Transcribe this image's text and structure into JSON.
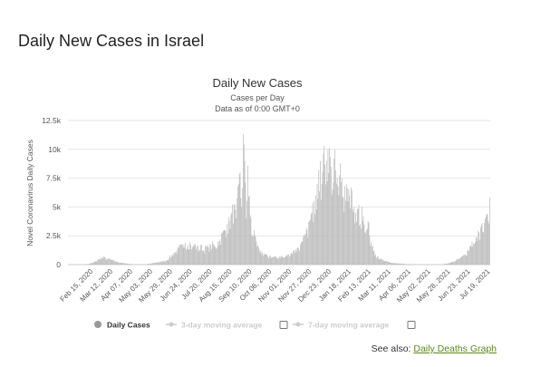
{
  "page": {
    "title": "Daily New Cases in Israel",
    "see_also_prefix": "See also:",
    "see_also_link": "Daily Deaths Graph"
  },
  "legend": {
    "items": [
      {
        "label": "Daily Cases",
        "active": true,
        "icon": "circle-marker-icon"
      },
      {
        "label": "3-day moving average",
        "active": false,
        "icon": "line-marker-icon"
      },
      {
        "label": "",
        "active": false,
        "icon": "checkbox-icon"
      },
      {
        "label": "7-day moving average",
        "active": false,
        "icon": "line-marker-icon"
      },
      {
        "label": "",
        "active": false,
        "icon": "checkbox-icon"
      }
    ]
  },
  "colors": {
    "bars": "#bbbbbb",
    "bars_stroke": "#9a9a9a",
    "grid": "#e6e6e6",
    "link": "#5a8a1a",
    "legend_active": "#999999",
    "legend_inactive": "#cccccc"
  },
  "chart_data": {
    "type": "bar",
    "title": "Daily New Cases",
    "subtitle": "Cases per Day",
    "subtitle2": "Data as of 0:00 GMT+0",
    "ylabel": "Novel Coronavirus Daily Cases",
    "xlabel": "",
    "x_start": "2020-02-15",
    "x_end": "2021-08-16",
    "ylim": [
      0,
      12500
    ],
    "y_ticks": [
      0,
      2500,
      5000,
      7500,
      10000,
      12500
    ],
    "y_tick_labels": [
      "0",
      "2.5k",
      "5k",
      "7.5k",
      "10k",
      "12.5k"
    ],
    "x_tick_labels": [
      "Feb 15, 2020",
      "Mar 12, 2020",
      "Apr 07, 2020",
      "May 03, 2020",
      "May 29, 2020",
      "Jun 24, 2020",
      "Jul 20, 2020",
      "Aug 15, 2020",
      "Sep 10, 2020",
      "Oct 06, 2020",
      "Nov 01, 2020",
      "Nov 27, 2020",
      "Dec 23, 2020",
      "Jan 18, 2021",
      "Feb 13, 2021",
      "Mar 11, 2021",
      "Apr 06, 2021",
      "May 02, 2021",
      "May 28, 2021",
      "Jun 23, 2021",
      "Jul 19, 2021"
    ],
    "grid": true,
    "legend_position": "bottom",
    "series": [
      {
        "name": "Daily Cases",
        "points": [
          [
            "2020-03-05",
            5
          ],
          [
            "2020-03-12",
            50
          ],
          [
            "2020-03-17",
            150
          ],
          [
            "2020-03-20",
            250
          ],
          [
            "2020-03-24",
            400
          ],
          [
            "2020-03-27",
            530
          ],
          [
            "2020-03-30",
            600
          ],
          [
            "2020-04-02",
            650
          ],
          [
            "2020-04-05",
            480
          ],
          [
            "2020-04-08",
            520
          ],
          [
            "2020-04-12",
            400
          ],
          [
            "2020-04-16",
            300
          ],
          [
            "2020-04-20",
            220
          ],
          [
            "2020-04-25",
            150
          ],
          [
            "2020-05-01",
            90
          ],
          [
            "2020-05-08",
            40
          ],
          [
            "2020-05-15",
            20
          ],
          [
            "2020-05-22",
            20
          ],
          [
            "2020-05-29",
            60
          ],
          [
            "2020-06-03",
            120
          ],
          [
            "2020-06-08",
            180
          ],
          [
            "2020-06-13",
            250
          ],
          [
            "2020-06-18",
            300
          ],
          [
            "2020-06-22",
            400
          ],
          [
            "2020-06-25",
            600
          ],
          [
            "2020-06-28",
            800
          ],
          [
            "2020-07-01",
            1000
          ],
          [
            "2020-07-04",
            1200
          ],
          [
            "2020-07-07",
            1400
          ],
          [
            "2020-07-10",
            1700
          ],
          [
            "2020-07-13",
            1500
          ],
          [
            "2020-07-16",
            1900
          ],
          [
            "2020-07-19",
            1700
          ],
          [
            "2020-07-22",
            1950
          ],
          [
            "2020-07-25",
            1500
          ],
          [
            "2020-07-28",
            1800
          ],
          [
            "2020-07-31",
            1600
          ],
          [
            "2020-08-03",
            1300
          ],
          [
            "2020-08-06",
            1700
          ],
          [
            "2020-08-09",
            1200
          ],
          [
            "2020-08-12",
            1600
          ],
          [
            "2020-08-15",
            1500
          ],
          [
            "2020-08-18",
            1700
          ],
          [
            "2020-08-21",
            1800
          ],
          [
            "2020-08-24",
            1500
          ],
          [
            "2020-08-27",
            2000
          ],
          [
            "2020-08-30",
            2200
          ],
          [
            "2020-09-02",
            2800
          ],
          [
            "2020-09-05",
            3000
          ],
          [
            "2020-09-08",
            3500
          ],
          [
            "2020-09-11",
            3800
          ],
          [
            "2020-09-14",
            4500
          ],
          [
            "2020-09-17",
            5200
          ],
          [
            "2020-09-20",
            4000
          ],
          [
            "2020-09-23",
            7000
          ],
          [
            "2020-09-25",
            8000
          ],
          [
            "2020-09-27",
            5000
          ],
          [
            "2020-09-29",
            11300
          ],
          [
            "2020-10-01",
            9000
          ],
          [
            "2020-10-03",
            4000
          ],
          [
            "2020-10-05",
            8600
          ],
          [
            "2020-10-07",
            6000
          ],
          [
            "2020-10-10",
            2500
          ],
          [
            "2020-10-13",
            3000
          ],
          [
            "2020-10-16",
            2000
          ],
          [
            "2020-10-19",
            1500
          ],
          [
            "2020-10-22",
            1200
          ],
          [
            "2020-10-25",
            800
          ],
          [
            "2020-10-28",
            900
          ],
          [
            "2020-10-31",
            700
          ],
          [
            "2020-11-03",
            800
          ],
          [
            "2020-11-06",
            650
          ],
          [
            "2020-11-09",
            700
          ],
          [
            "2020-11-12",
            600
          ],
          [
            "2020-11-15",
            700
          ],
          [
            "2020-11-18",
            750
          ],
          [
            "2020-11-21",
            600
          ],
          [
            "2020-11-24",
            800
          ],
          [
            "2020-11-27",
            900
          ],
          [
            "2020-11-30",
            1000
          ],
          [
            "2020-12-03",
            1200
          ],
          [
            "2020-12-06",
            1300
          ],
          [
            "2020-12-09",
            1500
          ],
          [
            "2020-12-12",
            1700
          ],
          [
            "2020-12-15",
            2000
          ],
          [
            "2020-12-18",
            2500
          ],
          [
            "2020-12-21",
            3000
          ],
          [
            "2020-12-24",
            3800
          ],
          [
            "2020-12-27",
            4500
          ],
          [
            "2020-12-30",
            5500
          ],
          [
            "2021-01-01",
            6000
          ],
          [
            "2021-01-03",
            7000
          ],
          [
            "2021-01-05",
            8200
          ],
          [
            "2021-01-07",
            9000
          ],
          [
            "2021-01-09",
            7000
          ],
          [
            "2021-01-11",
            9600
          ],
          [
            "2021-01-13",
            8700
          ],
          [
            "2021-01-15",
            9000
          ],
          [
            "2021-01-17",
            10000
          ],
          [
            "2021-01-19",
            10100
          ],
          [
            "2021-01-21",
            8500
          ],
          [
            "2021-01-23",
            6500
          ],
          [
            "2021-01-25",
            9200
          ],
          [
            "2021-01-27",
            8200
          ],
          [
            "2021-01-29",
            7500
          ],
          [
            "2021-01-31",
            6000
          ],
          [
            "2021-02-02",
            8800
          ],
          [
            "2021-02-04",
            7500
          ],
          [
            "2021-02-06",
            5800
          ],
          [
            "2021-02-08",
            6800
          ],
          [
            "2021-02-10",
            7000
          ],
          [
            "2021-02-12",
            5500
          ],
          [
            "2021-02-14",
            6000
          ],
          [
            "2021-02-16",
            6700
          ],
          [
            "2021-02-18",
            4800
          ],
          [
            "2021-02-20",
            5000
          ],
          [
            "2021-02-22",
            4500
          ],
          [
            "2021-02-24",
            4800
          ],
          [
            "2021-02-26",
            5200
          ],
          [
            "2021-02-28",
            3500
          ],
          [
            "2021-03-02",
            5000
          ],
          [
            "2021-03-04",
            4200
          ],
          [
            "2021-03-06",
            2800
          ],
          [
            "2021-03-08",
            3000
          ],
          [
            "2021-03-10",
            3800
          ],
          [
            "2021-03-12",
            2500
          ],
          [
            "2021-03-14",
            2000
          ],
          [
            "2021-03-16",
            1600
          ],
          [
            "2021-03-18",
            1200
          ],
          [
            "2021-03-20",
            900
          ],
          [
            "2021-03-23",
            700
          ],
          [
            "2021-03-26",
            500
          ],
          [
            "2021-03-29",
            400
          ],
          [
            "2021-04-01",
            300
          ],
          [
            "2021-04-05",
            250
          ],
          [
            "2021-04-09",
            180
          ],
          [
            "2021-04-14",
            120
          ],
          [
            "2021-04-20",
            90
          ],
          [
            "2021-04-27",
            60
          ],
          [
            "2021-05-05",
            40
          ],
          [
            "2021-05-12",
            30
          ],
          [
            "2021-05-20",
            25
          ],
          [
            "2021-05-28",
            15
          ],
          [
            "2021-06-05",
            10
          ],
          [
            "2021-06-12",
            20
          ],
          [
            "2021-06-18",
            60
          ],
          [
            "2021-06-22",
            120
          ],
          [
            "2021-06-26",
            200
          ],
          [
            "2021-06-29",
            280
          ],
          [
            "2021-07-02",
            350
          ],
          [
            "2021-07-05",
            480
          ],
          [
            "2021-07-08",
            600
          ],
          [
            "2021-07-11",
            750
          ],
          [
            "2021-07-14",
            900
          ],
          [
            "2021-07-17",
            1200
          ],
          [
            "2021-07-20",
            1600
          ],
          [
            "2021-07-23",
            2000
          ],
          [
            "2021-07-26",
            1800
          ],
          [
            "2021-07-29",
            2400
          ],
          [
            "2021-08-01",
            2800
          ],
          [
            "2021-08-03",
            3200
          ],
          [
            "2021-08-05",
            3600
          ],
          [
            "2021-08-07",
            2800
          ],
          [
            "2021-08-09",
            4000
          ],
          [
            "2021-08-11",
            4400
          ],
          [
            "2021-08-13",
            3800
          ],
          [
            "2021-08-15",
            5800
          ]
        ]
      }
    ]
  }
}
